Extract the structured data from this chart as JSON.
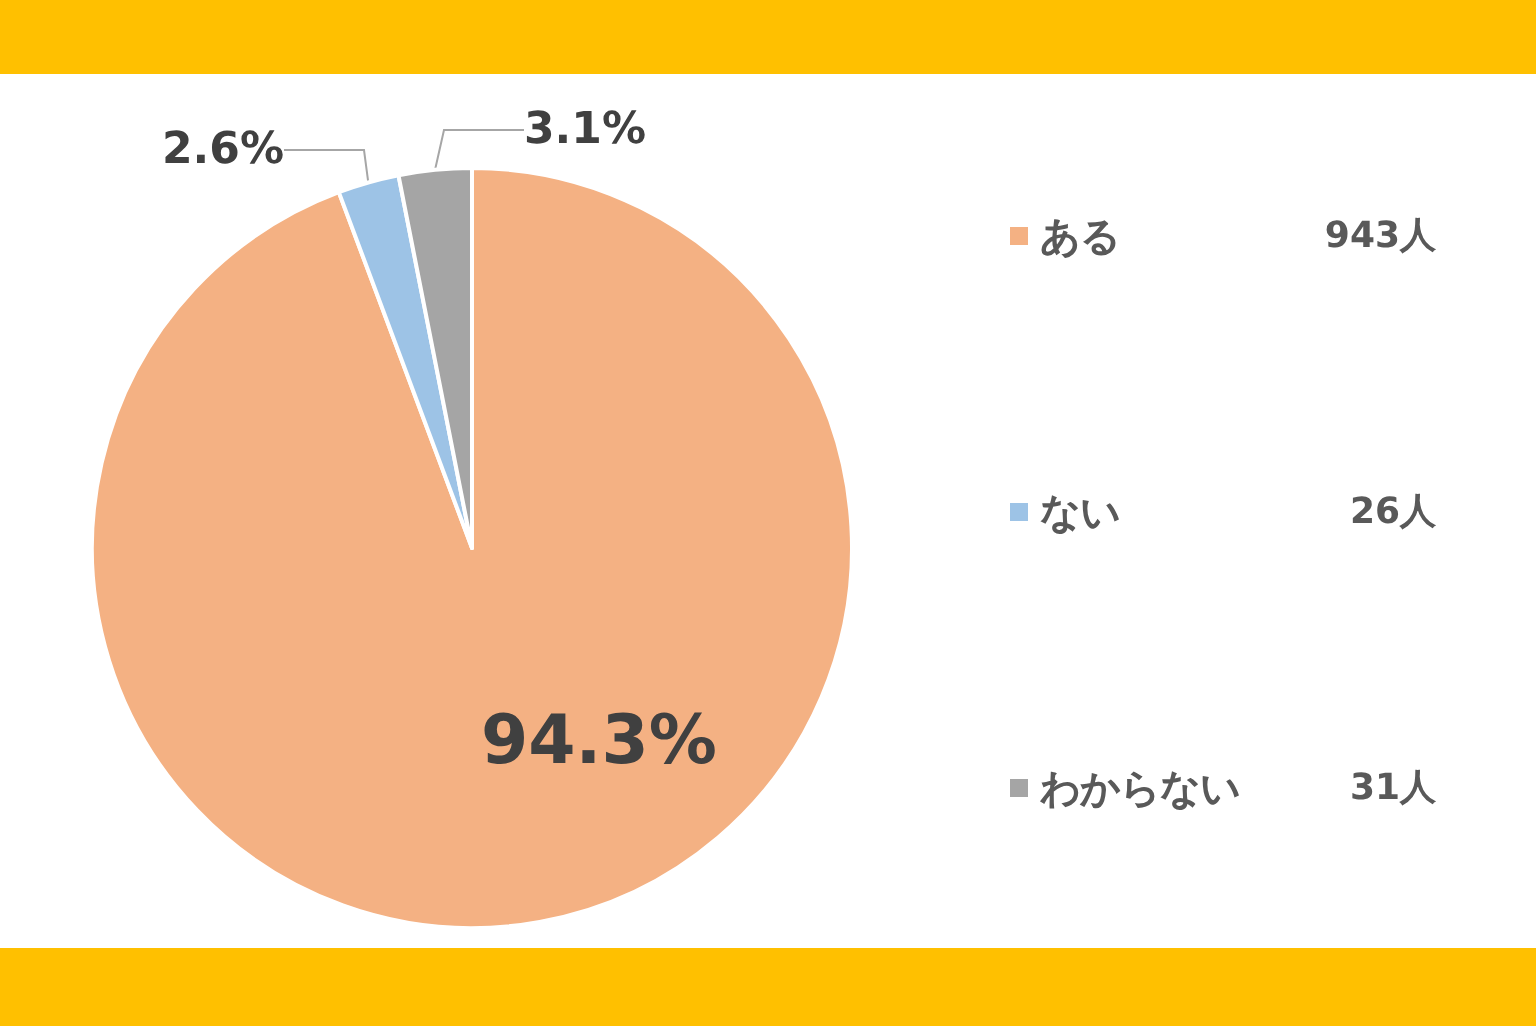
{
  "chart_data": {
    "type": "pie",
    "categories": [
      "ある",
      "ない",
      "わからない"
    ],
    "values": [
      94.3,
      2.6,
      3.1
    ],
    "colors": [
      "#f4b183",
      "#9dc3e6",
      "#a5a5a5"
    ],
    "value_labels": [
      "94.3%",
      "2.6%",
      "3.1%"
    ],
    "annotations": [
      "943人",
      "26人",
      "31人"
    ],
    "legend": "right"
  }
}
